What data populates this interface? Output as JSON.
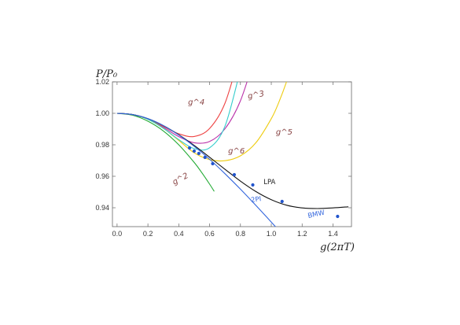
{
  "chart_data": {
    "type": "line",
    "title": "",
    "xlabel": "g(2πT)",
    "ylabel": "P/P₀",
    "xlim": [
      -0.03,
      1.52
    ],
    "ylim": [
      0.928,
      1.02
    ],
    "xticks": [
      0.0,
      0.2,
      0.4,
      0.6,
      0.8,
      1.0,
      1.2,
      1.4
    ],
    "yticks": [
      0.94,
      0.96,
      0.98,
      1.0,
      1.02
    ],
    "grid": false,
    "legend": "none",
    "series": [
      {
        "name": "g^2",
        "color": "#22aa33",
        "x": [
          0,
          0.1,
          0.2,
          0.3,
          0.4,
          0.5,
          0.55,
          0.6,
          0.63
        ],
        "y": [
          1.0,
          0.9988,
          0.995,
          0.9888,
          0.98,
          0.9688,
          0.9622,
          0.955,
          0.9504
        ]
      },
      {
        "name": "g^3",
        "color": "#bb33aa",
        "x": [
          0,
          0.1,
          0.2,
          0.3,
          0.4,
          0.5,
          0.6,
          0.7,
          0.8,
          0.9
        ],
        "y": [
          1.0,
          0.9992,
          0.9963,
          0.9911,
          0.9852,
          0.9813,
          0.9821,
          0.9902,
          1.008,
          1.038
        ]
      },
      {
        "name": "g^4",
        "color": "#ee4444",
        "x": [
          0,
          0.1,
          0.2,
          0.3,
          0.4,
          0.5,
          0.6,
          0.7,
          0.8
        ],
        "y": [
          1.0,
          0.9992,
          0.9964,
          0.9917,
          0.987,
          0.9853,
          0.9904,
          1.0065,
          1.0391
        ]
      },
      {
        "name": "g^5",
        "color": "#eecc11",
        "x": [
          0,
          0.1,
          0.2,
          0.3,
          0.4,
          0.5,
          0.6,
          0.7,
          0.8,
          0.9,
          1.0,
          1.05,
          1.1,
          1.15
        ],
        "y": [
          1.0,
          0.9992,
          0.9962,
          0.9905,
          0.9828,
          0.9749,
          0.9706,
          0.9699,
          0.973,
          0.9813,
          0.9966,
          1.0073,
          1.0204,
          1.036
        ]
      },
      {
        "name": "g^6",
        "color": "#33cccc",
        "x": [
          0,
          0.1,
          0.2,
          0.3,
          0.4,
          0.5,
          0.6,
          0.7,
          0.8
        ],
        "y": [
          1.0,
          0.9992,
          0.9962,
          0.9905,
          0.9833,
          0.9776,
          0.9781,
          0.9919,
          1.0278
        ]
      },
      {
        "name": "LPA",
        "color": "#111111",
        "x": [
          0,
          0.1,
          0.2,
          0.3,
          0.4,
          0.5,
          0.6,
          0.7,
          0.8,
          0.9,
          1.0,
          1.1,
          1.2,
          1.3,
          1.4,
          1.5
        ],
        "y": [
          1.0,
          0.9992,
          0.9966,
          0.9922,
          0.9864,
          0.9796,
          0.9721,
          0.9644,
          0.9569,
          0.9503,
          0.9451,
          0.9416,
          0.9399,
          0.9395,
          0.9399,
          0.9406
        ]
      },
      {
        "name": "2PI",
        "color": "#3366dd",
        "x": [
          0,
          0.1,
          0.2,
          0.3,
          0.4,
          0.5,
          0.6,
          0.7,
          0.8,
          0.9,
          1.0,
          1.1,
          1.2
        ],
        "y": [
          1.0,
          0.9992,
          0.9966,
          0.9922,
          0.9862,
          0.979,
          0.9708,
          0.9616,
          0.9518,
          0.9415,
          0.9309,
          0.9201,
          0.9093
        ]
      }
    ],
    "points": {
      "name": "BMW",
      "color": "#2255cc",
      "x": [
        0.47,
        0.5,
        0.53,
        0.57,
        0.62,
        0.76,
        0.88,
        1.07,
        1.43
      ],
      "y": [
        0.978,
        0.976,
        0.9745,
        0.972,
        0.968,
        0.961,
        0.9545,
        0.944,
        0.9345
      ]
    },
    "annotations": [
      {
        "text": "g^2",
        "x": 0.37,
        "y": 0.9545,
        "color": "#884444",
        "rotate": -28
      },
      {
        "text": "g^3",
        "x": 0.85,
        "y": 1.0092,
        "color": "#884444",
        "rotate": -10
      },
      {
        "text": "g^4",
        "x": 0.46,
        "y": 1.0055,
        "color": "#884444",
        "rotate": 0
      },
      {
        "text": "g^5",
        "x": 1.03,
        "y": 0.9865,
        "color": "#884444",
        "rotate": 0
      },
      {
        "text": "g^6",
        "x": 0.72,
        "y": 0.9745,
        "color": "#884444",
        "rotate": 0
      },
      {
        "text": "LPA",
        "x": 0.95,
        "y": 0.955,
        "color": "#222222",
        "rotate": 0
      },
      {
        "text": "2PI",
        "x": 0.87,
        "y": 0.9435,
        "color": "#3366dd",
        "rotate": -8
      },
      {
        "text": "BMW",
        "x": 1.24,
        "y": 0.9335,
        "color": "#3366dd",
        "rotate": -12
      }
    ]
  }
}
